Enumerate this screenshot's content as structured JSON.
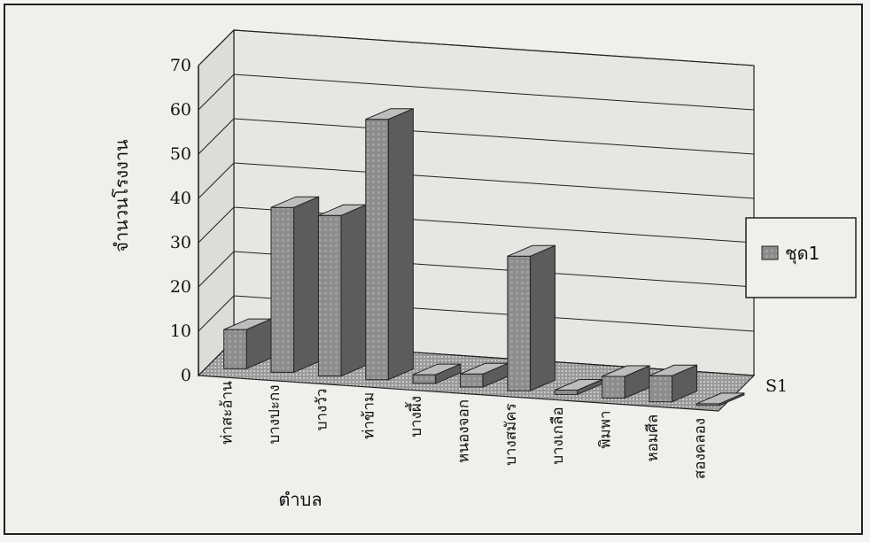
{
  "chart_data": {
    "type": "bar",
    "style": "3d-clustered-column",
    "categories": [
      "ท่าสะอ้าน",
      "บางปะกง",
      "บางวัว",
      "ท่าข้าม",
      "บางผึ้ง",
      "หนองจอก",
      "บางสมัคร",
      "บางเกลือ",
      "พิมพา",
      "หอมศีล",
      "สองคลอง"
    ],
    "series": [
      {
        "name": "ชุด1",
        "values": [
          9,
          38,
          37,
          60,
          2,
          3,
          31,
          1,
          5,
          6,
          0
        ]
      }
    ],
    "depth_axis_label": "S1",
    "xlabel": "ตำบล",
    "ylabel": "จำนวนโรงงาน",
    "ylim": [
      0,
      70
    ],
    "yticks": [
      0,
      10,
      20,
      30,
      40,
      50,
      60,
      70
    ],
    "grid": true,
    "legend_position": "right",
    "colors": {
      "bar_front": "#8c8c8c",
      "bar_side": "#5c5c5c",
      "bar_top": "#bdbdbd",
      "grid": "#222222"
    }
  }
}
